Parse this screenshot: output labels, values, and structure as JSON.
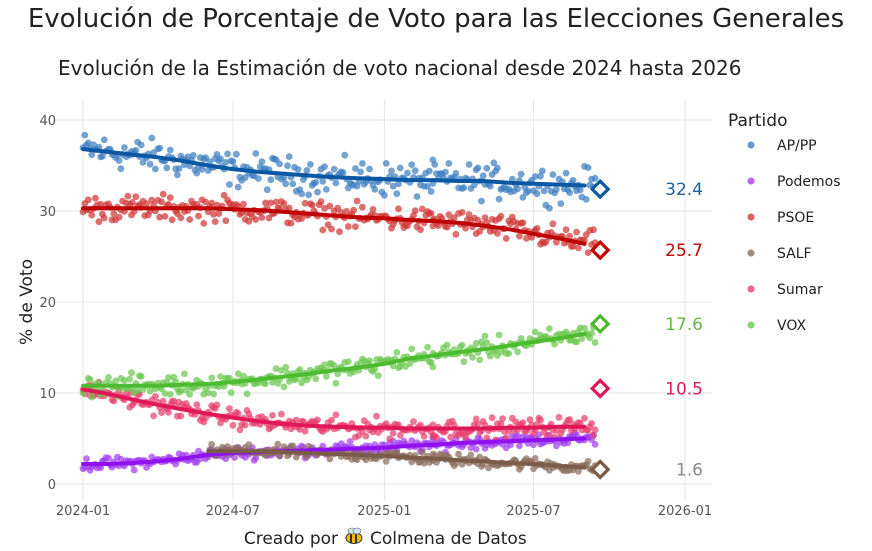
{
  "chart_data": {
    "type": "scatter",
    "title": "Evolución de Porcentaje de Voto para las Elecciones Generales",
    "subtitle": "Evolución de la Estimación de voto nacional desde 2024 hasta 2026",
    "xlabel": "Creado por 🐝 Colmena de Datos",
    "xlabel_prefix": "Creado por",
    "xlabel_brand": "Colmena de Datos",
    "ylabel": "% de Voto",
    "ylim": [
      0,
      40
    ],
    "yticks": [
      0,
      10,
      20,
      30,
      40
    ],
    "xlim": [
      "2024-01-01",
      "2026-01-01"
    ],
    "xticks": [
      "2024-01",
      "2024-07",
      "2025-01",
      "2025-07",
      "2026-01"
    ],
    "grid": true,
    "legend_title": "Partido",
    "legend_position": "right",
    "trend_months": [
      "2024-01",
      "2024-02",
      "2024-03",
      "2024-04",
      "2024-05",
      "2024-06",
      "2024-07",
      "2024-08",
      "2024-09",
      "2024-10",
      "2024-11",
      "2024-12",
      "2025-01",
      "2025-02",
      "2025-03",
      "2025-04",
      "2025-05",
      "2025-06",
      "2025-07",
      "2025-08",
      "2025-09"
    ],
    "estimate_date": "2025-09-20",
    "series": [
      {
        "name": "AP/PP",
        "point_color": "#3f7fc0",
        "line_color": "#0b57a4",
        "label_color": "#1f5fa0",
        "noise": 1.6,
        "trend": [
          36.8,
          36.5,
          36.2,
          35.9,
          35.5,
          35.0,
          34.6,
          34.3,
          34.1,
          33.9,
          33.7,
          33.6,
          33.5,
          33.4,
          33.4,
          33.3,
          33.3,
          33.1,
          33.0,
          32.9,
          32.8
        ],
        "estimate": 32.4,
        "estimate_label": "32.4"
      },
      {
        "name": "Podemos",
        "point_color": "#a23ef0",
        "line_color": "#9010f0",
        "label_color": "#9010f0",
        "noise": 0.6,
        "trend": [
          2.2,
          2.2,
          2.3,
          2.5,
          2.8,
          3.2,
          3.4,
          3.5,
          3.6,
          3.7,
          3.8,
          3.9,
          4.0,
          4.2,
          4.3,
          4.5,
          4.6,
          4.7,
          4.8,
          4.9,
          5.0
        ],
        "estimate": null,
        "estimate_label": null
      },
      {
        "name": "PSOE",
        "point_color": "#d03838",
        "line_color": "#c00000",
        "label_color": "#c00000",
        "noise": 1.2,
        "trend": [
          30.3,
          30.3,
          30.3,
          30.3,
          30.3,
          30.3,
          30.2,
          30.1,
          29.9,
          29.7,
          29.5,
          29.3,
          29.2,
          29.0,
          28.9,
          28.7,
          28.4,
          28.0,
          27.5,
          27.0,
          26.4
        ],
        "estimate": 25.7,
        "estimate_label": "25.7"
      },
      {
        "name": "SALF",
        "point_color": "#8a6e5c",
        "line_color": "#7a5c48",
        "label_color": "#888888",
        "noise": 0.6,
        "trend": [
          null,
          null,
          null,
          null,
          null,
          3.6,
          3.6,
          3.6,
          3.5,
          3.4,
          3.3,
          3.2,
          3.1,
          2.9,
          2.8,
          2.6,
          2.5,
          2.3,
          2.2,
          2.0,
          1.8
        ],
        "estimate": 1.6,
        "estimate_label": "1.6"
      },
      {
        "name": "Sumar",
        "point_color": "#e8406e",
        "line_color": "#e0185a",
        "label_color": "#d81b60",
        "noise": 0.9,
        "trend": [
          10.4,
          9.9,
          9.3,
          8.7,
          8.2,
          7.7,
          7.3,
          6.9,
          6.6,
          6.4,
          6.3,
          6.2,
          6.2,
          6.1,
          6.1,
          6.1,
          6.1,
          6.2,
          6.2,
          6.3,
          6.3
        ],
        "estimate": 10.5,
        "estimate_label": "10.5"
      },
      {
        "name": "VOX",
        "point_color": "#6cc850",
        "line_color": "#4cbb30",
        "label_color": "#66b84a",
        "noise": 1.0,
        "trend": [
          10.8,
          10.8,
          10.8,
          10.8,
          10.9,
          11.0,
          11.2,
          11.5,
          11.8,
          12.1,
          12.5,
          12.8,
          13.2,
          13.8,
          14.1,
          14.5,
          14.8,
          15.2,
          15.6,
          16.0,
          16.5
        ],
        "estimate": 17.6,
        "estimate_label": "17.6"
      }
    ]
  }
}
